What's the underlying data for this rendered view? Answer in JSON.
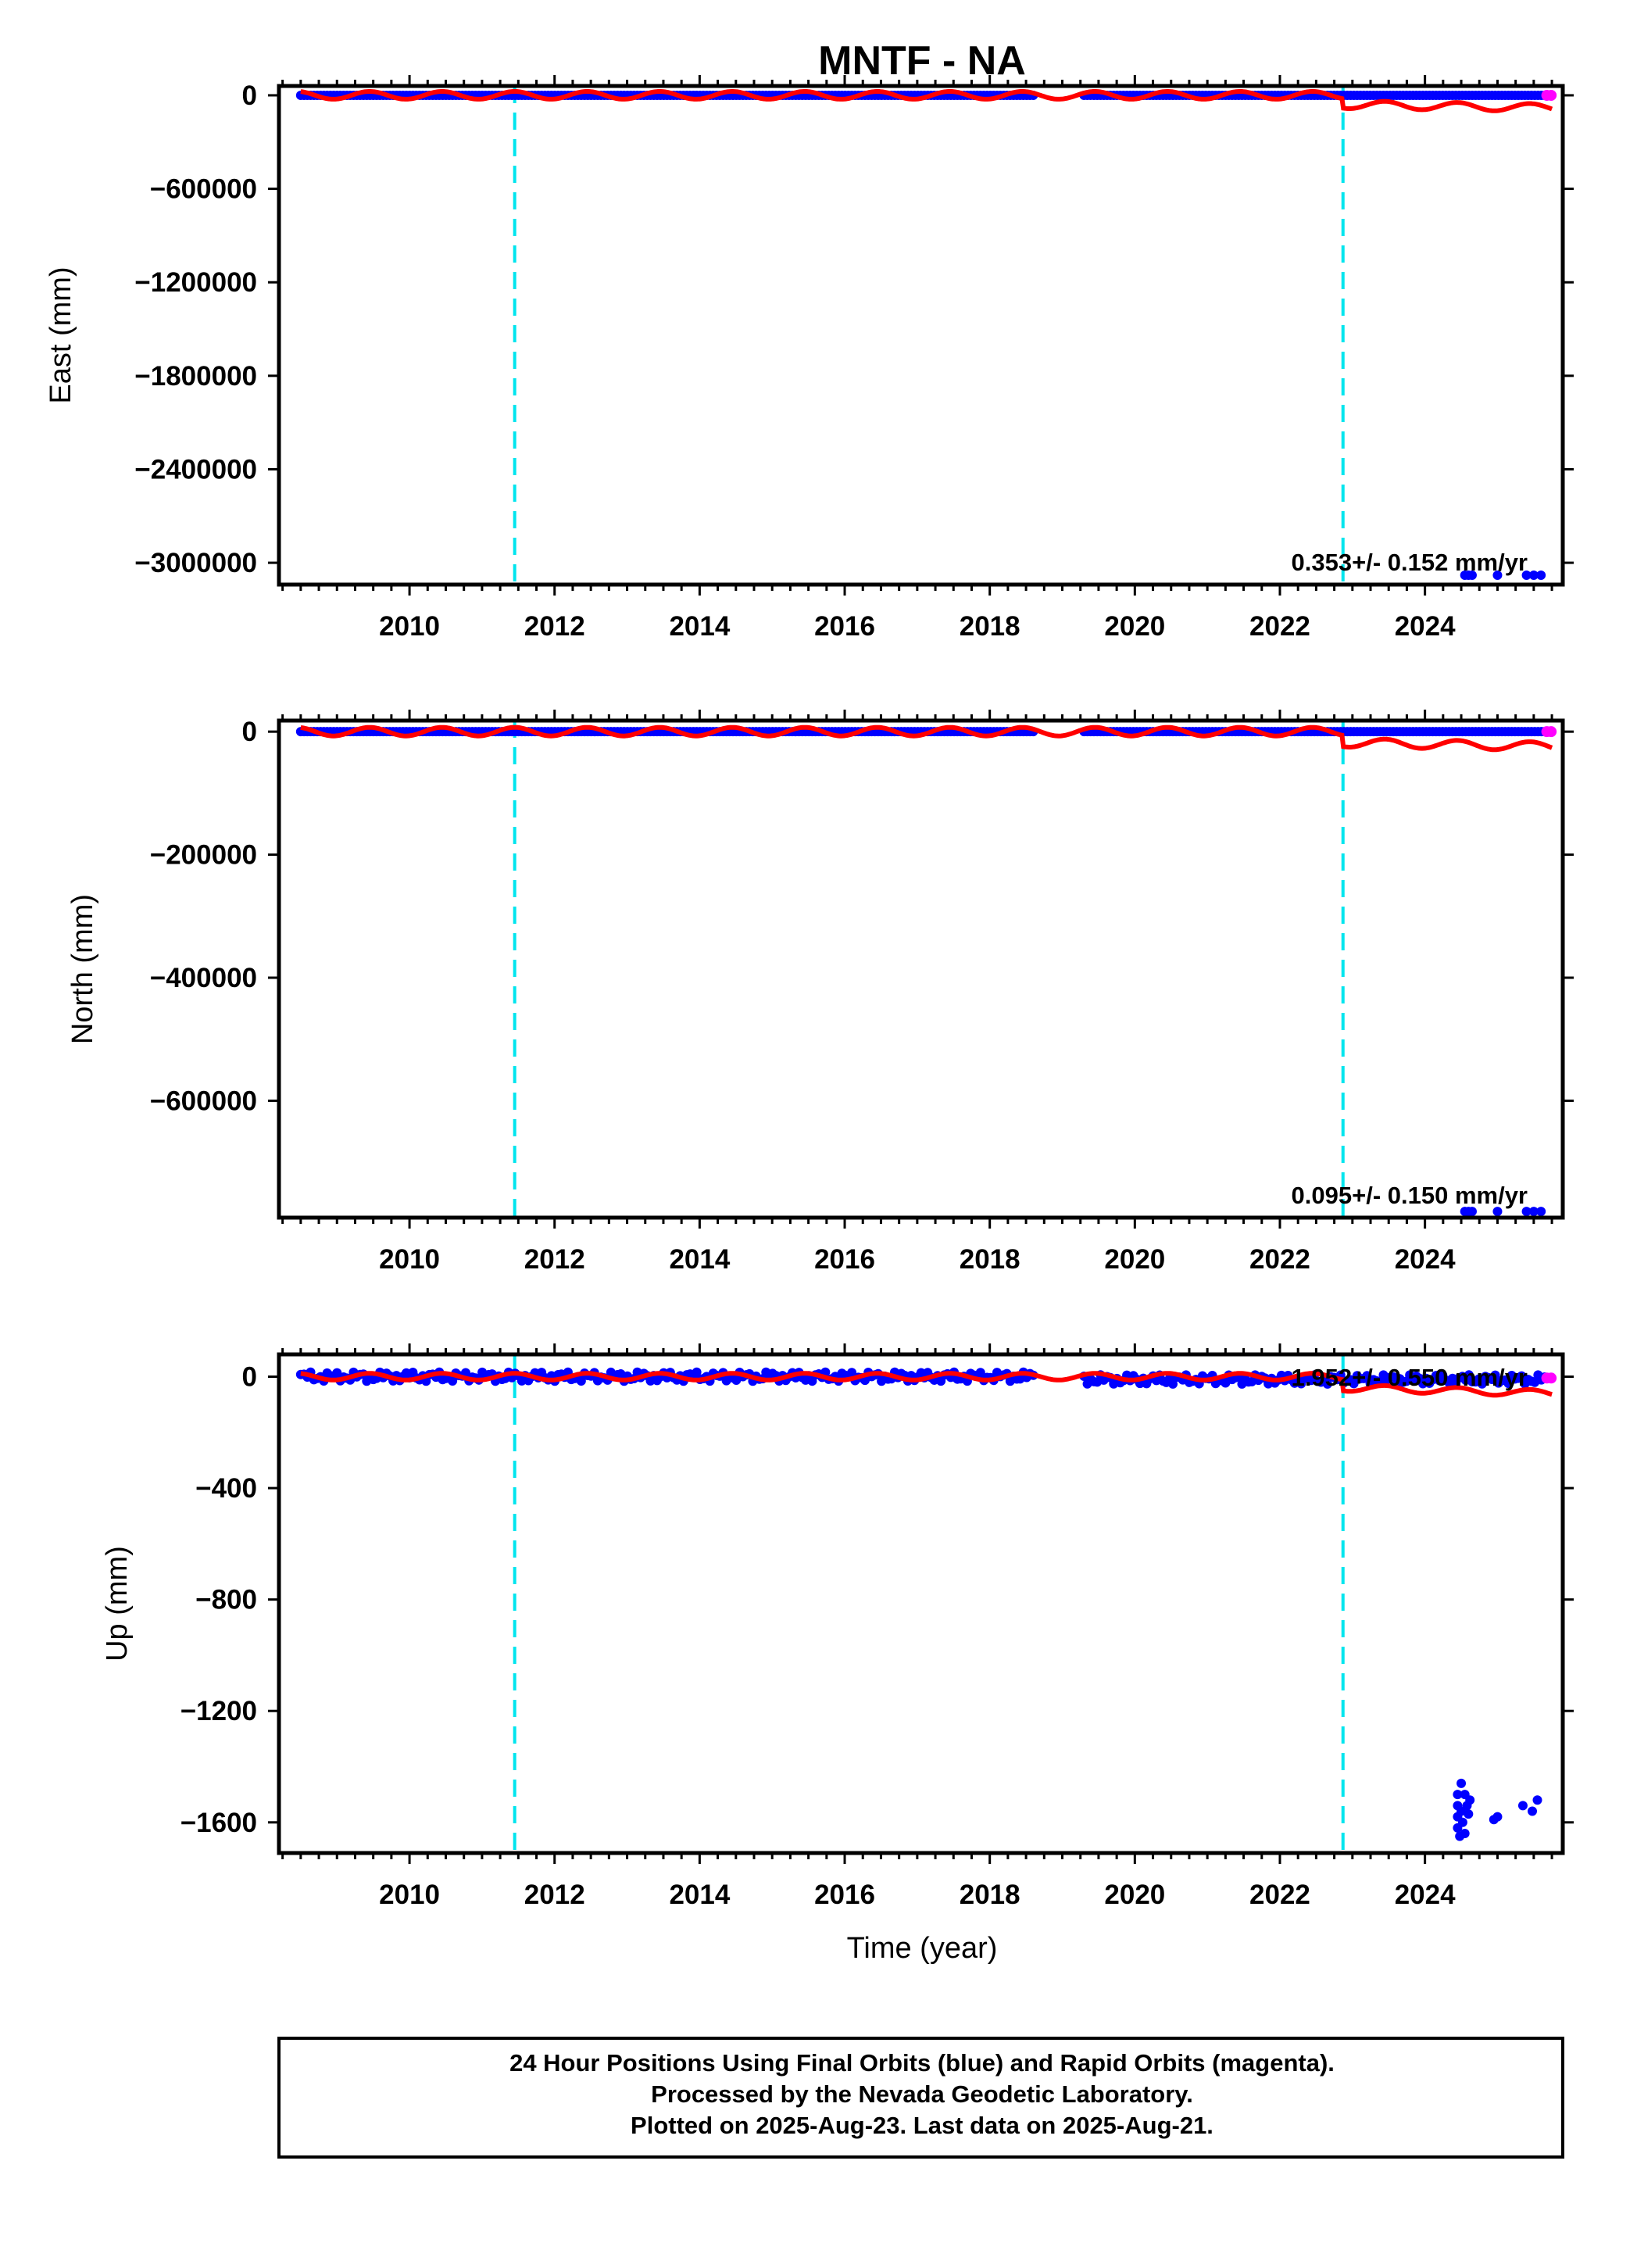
{
  "title": "MNTF - NA",
  "x_axis_title": "Time (year)",
  "footer_lines": [
    "24 Hour Positions Using Final Orbits (blue) and Rapid Orbits (magenta).",
    "Processed by the Nevada Geodetic Laboratory.",
    "Plotted on 2025-Aug-23. Last data on 2025-Aug-21."
  ],
  "colors": {
    "final_orbits": "#0000ff",
    "rapid_orbits": "#ff00ff",
    "model": "#ff0000",
    "equipment_change": "#00e5ee",
    "axes": "#000000"
  },
  "chart_data": [
    {
      "type": "scatter",
      "ylabel": "East (mm)",
      "xlim": [
        2008.2,
        2025.9
      ],
      "ylim": [
        -3140000,
        60000
      ],
      "x_ticks": [
        2010,
        2012,
        2014,
        2016,
        2018,
        2020,
        2022,
        2024
      ],
      "x_tick_labels": [
        "2010",
        "2012",
        "2014",
        "2016",
        "2018",
        "2020",
        "2022",
        "2024"
      ],
      "y_ticks": [
        0,
        -600000,
        -1200000,
        -1800000,
        -2400000,
        -3000000
      ],
      "y_tick_labels": [
        "0",
        "−600000",
        "−1200000",
        "−1800000",
        "−2400000",
        "−3000000"
      ],
      "rate_label": "0.353+/- 0.152 mm/yr",
      "grid": false,
      "equipment_changes": [
        2011.45,
        2022.87
      ],
      "final_segments": [
        [
          2008.5,
          2018.6,
          0
        ],
        [
          2019.3,
          2025.65,
          0
        ]
      ],
      "rapid_points": [
        [
          2025.68,
          0
        ],
        [
          2025.74,
          0
        ]
      ],
      "outliers": [
        [
          2024.55,
          -3080000
        ],
        [
          2024.6,
          -3080000
        ],
        [
          2024.65,
          -3080000
        ],
        [
          2025.0,
          -3080000
        ],
        [
          2025.4,
          -3080000
        ],
        [
          2025.5,
          -3080000
        ],
        [
          2025.6,
          -3080000
        ]
      ],
      "model": {
        "start": 2008.5,
        "end": 2025.75,
        "amplitude": 25000,
        "offset_at": 2022.87,
        "offset": -60000,
        "trend_after": -20000
      }
    },
    {
      "type": "scatter",
      "ylabel": "North (mm)",
      "xlim": [
        2008.2,
        2025.9
      ],
      "ylim": [
        -790000,
        18000
      ],
      "x_ticks": [
        2010,
        2012,
        2014,
        2016,
        2018,
        2020,
        2022,
        2024
      ],
      "x_tick_labels": [
        "2010",
        "2012",
        "2014",
        "2016",
        "2018",
        "2020",
        "2022",
        "2024"
      ],
      "y_ticks": [
        0,
        -200000,
        -400000,
        -600000
      ],
      "y_tick_labels": [
        "0",
        "−200000",
        "−400000",
        "−600000"
      ],
      "rate_label": "0.095+/- 0.150 mm/yr",
      "grid": false,
      "equipment_changes": [
        2011.45,
        2022.87
      ],
      "final_segments": [
        [
          2008.5,
          2018.6,
          0
        ],
        [
          2019.3,
          2025.65,
          0
        ]
      ],
      "rapid_points": [
        [
          2025.68,
          0
        ],
        [
          2025.74,
          0
        ]
      ],
      "outliers": [
        [
          2024.55,
          -780000
        ],
        [
          2024.6,
          -780000
        ],
        [
          2024.65,
          -780000
        ],
        [
          2025.0,
          -780000
        ],
        [
          2025.4,
          -780000
        ],
        [
          2025.5,
          -780000
        ],
        [
          2025.6,
          -780000
        ]
      ],
      "model": {
        "start": 2008.5,
        "end": 2025.75,
        "amplitude": 7000,
        "offset_at": 2022.87,
        "offset": -18000,
        "trend_after": -6000
      }
    },
    {
      "type": "scatter",
      "ylabel": "Up (mm)",
      "xlabel": "Time (year)",
      "xlim": [
        2008.2,
        2025.9
      ],
      "ylim": [
        -1710,
        80
      ],
      "x_ticks": [
        2010,
        2012,
        2014,
        2016,
        2018,
        2020,
        2022,
        2024
      ],
      "x_tick_labels": [
        "2010",
        "2012",
        "2014",
        "2016",
        "2018",
        "2020",
        "2022",
        "2024"
      ],
      "y_ticks": [
        0,
        -400,
        -800,
        -1200,
        -1600
      ],
      "y_tick_labels": [
        "0",
        "−400",
        "−800",
        "−1200",
        "−1600"
      ],
      "rate_label": "1.952+/- 0.550 mm/yr",
      "grid": false,
      "equipment_changes": [
        2011.45,
        2022.87
      ],
      "final_segments": [
        [
          2008.5,
          2018.6,
          0
        ],
        [
          2019.3,
          2025.65,
          -10
        ]
      ],
      "rapid_points": [
        [
          2025.68,
          -5
        ],
        [
          2025.74,
          -5
        ]
      ],
      "outliers": [
        [
          2024.45,
          -1500
        ],
        [
          2024.45,
          -1540
        ],
        [
          2024.45,
          -1580
        ],
        [
          2024.45,
          -1620
        ],
        [
          2024.48,
          -1650
        ],
        [
          2024.5,
          -1460
        ],
        [
          2024.5,
          -1560
        ],
        [
          2024.52,
          -1600
        ],
        [
          2024.55,
          -1640
        ],
        [
          2024.55,
          -1500
        ],
        [
          2024.58,
          -1540
        ],
        [
          2024.6,
          -1570
        ],
        [
          2024.62,
          -1520
        ],
        [
          2024.95,
          -1590
        ],
        [
          2025.0,
          -1580
        ],
        [
          2025.35,
          -1540
        ],
        [
          2025.48,
          -1560
        ],
        [
          2025.55,
          -1520
        ]
      ],
      "model": {
        "start": 2008.5,
        "end": 2025.75,
        "amplitude": 12,
        "offset_at": 2022.87,
        "offset": -40,
        "trend_after": -20
      }
    }
  ]
}
